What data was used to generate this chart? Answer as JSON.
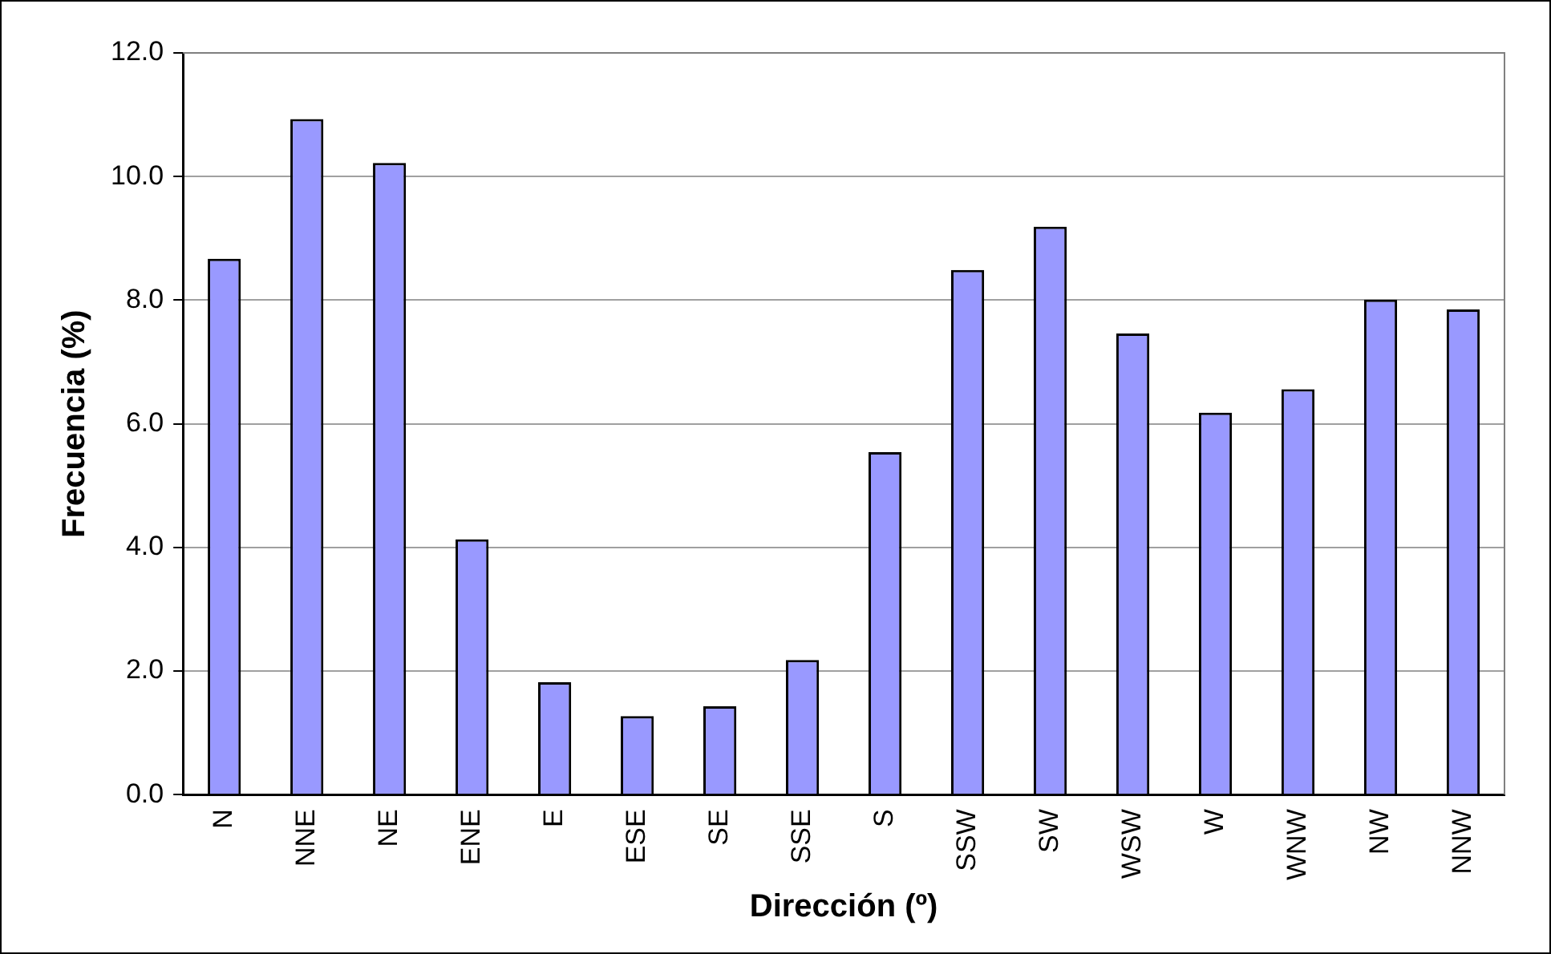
{
  "chart_data": {
    "type": "bar",
    "xlabel": "Dirección (º)",
    "ylabel": "Frecuencia (%)",
    "categories": [
      "N",
      "NNE",
      "NE",
      "ENE",
      "E",
      "ESE",
      "SE",
      "SSE",
      "S",
      "SSW",
      "SW",
      "WSW",
      "W",
      "WNW",
      "NW",
      "NNW"
    ],
    "values": [
      8.67,
      10.93,
      10.22,
      4.13,
      1.82,
      1.27,
      1.43,
      2.18,
      5.54,
      8.49,
      9.19,
      7.46,
      6.18,
      6.56,
      8.01,
      7.85
    ],
    "color": "#9999ff",
    "ylim": [
      0,
      12
    ],
    "yticks": [
      {
        "value": 0,
        "label": "0.0"
      },
      {
        "value": 2,
        "label": "2.0"
      },
      {
        "value": 4,
        "label": "4.0"
      },
      {
        "value": 6,
        "label": "6.0"
      },
      {
        "value": 8,
        "label": "8.0"
      },
      {
        "value": 10,
        "label": "10.0"
      },
      {
        "value": 12,
        "label": "12.0"
      }
    ],
    "grid": "y",
    "legend": false
  }
}
